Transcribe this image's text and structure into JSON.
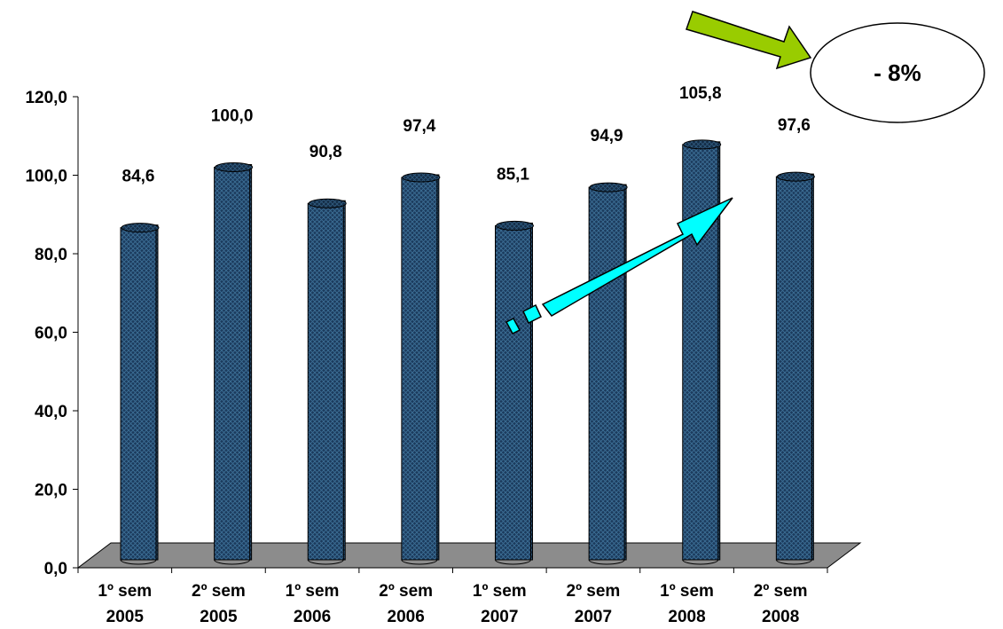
{
  "chart_data": {
    "type": "bar",
    "categories": [
      [
        "1º sem",
        "2005"
      ],
      [
        "2º sem",
        "2005"
      ],
      [
        "1º sem",
        "2006"
      ],
      [
        "2º sem",
        "2006"
      ],
      [
        "1º sem",
        "2007"
      ],
      [
        "2º sem",
        "2007"
      ],
      [
        "1º sem",
        "2008"
      ],
      [
        "2º sem",
        "2008"
      ]
    ],
    "values": [
      84.6,
      100.0,
      90.8,
      97.4,
      85.1,
      94.9,
      105.8,
      97.6
    ],
    "value_labels": [
      "84,6",
      "100,0",
      "90,8",
      "97,4",
      "85,1",
      "94,9",
      "105,8",
      "97,6"
    ],
    "yticks": [
      "0,0",
      "20,0",
      "40,0",
      "60,0",
      "80,0",
      "100,0",
      "120,0"
    ],
    "ylim": [
      0,
      120
    ],
    "title": "",
    "xlabel": "",
    "ylabel": "",
    "grid": false,
    "style": "3d-cylinder"
  },
  "annotations": {
    "badge_text": "- 8%"
  },
  "colors": {
    "bar": "#1b3a5c",
    "bar_pattern": "#3d6f96",
    "floor": "#8c8c8c",
    "trend_arrow": "#00ffff",
    "callout_arrow": "#99cc00"
  }
}
